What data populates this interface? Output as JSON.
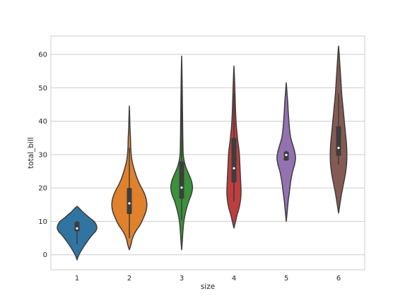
{
  "chart_data": {
    "type": "violin",
    "title": "",
    "xlabel": "size",
    "ylabel": "total_bill",
    "categories": [
      "1",
      "2",
      "3",
      "4",
      "5",
      "6"
    ],
    "ylim": [
      -4.5,
      65.5
    ],
    "yticks": [
      0,
      10,
      20,
      30,
      40,
      50,
      60
    ],
    "grid": true,
    "grid_axis": "y",
    "violins": [
      {
        "category": "1",
        "color": "#3274a1",
        "ymin": -1.5,
        "ymax": 14.5,
        "profile": [
          [
            -1.5,
            0.0
          ],
          [
            0,
            0.06
          ],
          [
            2,
            0.18
          ],
          [
            4,
            0.32
          ],
          [
            6,
            0.48
          ],
          [
            7,
            0.58
          ],
          [
            8,
            0.62
          ],
          [
            9,
            0.6
          ],
          [
            10,
            0.53
          ],
          [
            11,
            0.4
          ],
          [
            12,
            0.28
          ],
          [
            13,
            0.16
          ],
          [
            14,
            0.06
          ],
          [
            14.5,
            0.0
          ]
        ],
        "median": 7.9,
        "q1": 7.0,
        "q3": 9.9,
        "whisker_low": 3.1,
        "whisker_high": 10.1
      },
      {
        "category": "2",
        "color": "#e1812c",
        "ymin": 1.5,
        "ymax": 44.5,
        "profile": [
          [
            1.5,
            0.0
          ],
          [
            3,
            0.05
          ],
          [
            5,
            0.1
          ],
          [
            7,
            0.2
          ],
          [
            9,
            0.34
          ],
          [
            11,
            0.44
          ],
          [
            13,
            0.52
          ],
          [
            15,
            0.55
          ],
          [
            17,
            0.52
          ],
          [
            19,
            0.44
          ],
          [
            21,
            0.33
          ],
          [
            23,
            0.24
          ],
          [
            25,
            0.17
          ],
          [
            27,
            0.11
          ],
          [
            29,
            0.07
          ],
          [
            31,
            0.05
          ],
          [
            33,
            0.04
          ],
          [
            35,
            0.035
          ],
          [
            38,
            0.02
          ],
          [
            41,
            0.012
          ],
          [
            44.5,
            0.0
          ]
        ],
        "median": 15.4,
        "q1": 12.2,
        "q3": 20.0,
        "whisker_low": 5.0,
        "whisker_high": 32.0
      },
      {
        "category": "3",
        "color": "#3a923a",
        "ymin": 1.5,
        "ymax": 59.5,
        "profile": [
          [
            1.5,
            0.0
          ],
          [
            4,
            0.02
          ],
          [
            7,
            0.04
          ],
          [
            10,
            0.07
          ],
          [
            13,
            0.13
          ],
          [
            16,
            0.22
          ],
          [
            18,
            0.3
          ],
          [
            20,
            0.34
          ],
          [
            22,
            0.31
          ],
          [
            24,
            0.23
          ],
          [
            26,
            0.14
          ],
          [
            28,
            0.08
          ],
          [
            30,
            0.05
          ],
          [
            33,
            0.04
          ],
          [
            36,
            0.035
          ],
          [
            40,
            0.03
          ],
          [
            44,
            0.025
          ],
          [
            48,
            0.02
          ],
          [
            52,
            0.015
          ],
          [
            56,
            0.008
          ],
          [
            59.5,
            0.0
          ]
        ],
        "median": 20.1,
        "q1": 16.8,
        "q3": 27.9,
        "whisker_low": 10.3,
        "whisker_high": 50.8
      },
      {
        "category": "4",
        "color": "#c03d3e",
        "ymin": 8.0,
        "ymax": 56.5,
        "profile": [
          [
            8,
            0.0
          ],
          [
            10,
            0.05
          ],
          [
            12,
            0.1
          ],
          [
            14,
            0.16
          ],
          [
            16,
            0.2
          ],
          [
            18,
            0.22
          ],
          [
            20,
            0.22
          ],
          [
            22,
            0.21
          ],
          [
            24,
            0.2
          ],
          [
            26,
            0.19
          ],
          [
            28,
            0.18
          ],
          [
            30,
            0.17
          ],
          [
            32,
            0.15
          ],
          [
            34,
            0.12
          ],
          [
            36,
            0.1
          ],
          [
            38,
            0.08
          ],
          [
            40,
            0.065
          ],
          [
            43,
            0.05
          ],
          [
            46,
            0.04
          ],
          [
            49,
            0.03
          ],
          [
            52,
            0.02
          ],
          [
            54.5,
            0.01
          ],
          [
            56.5,
            0.0
          ]
        ],
        "median": 25.9,
        "q1": 21.6,
        "q3": 35.0,
        "whisker_low": 16.0,
        "whisker_high": 48.3
      },
      {
        "category": "5",
        "color": "#9372b2",
        "ymin": 10.0,
        "ymax": 51.5,
        "profile": [
          [
            10,
            0.0
          ],
          [
            13,
            0.03
          ],
          [
            16,
            0.06
          ],
          [
            19,
            0.1
          ],
          [
            22,
            0.14
          ],
          [
            25,
            0.2
          ],
          [
            27,
            0.26
          ],
          [
            29,
            0.29
          ],
          [
            31,
            0.26
          ],
          [
            33,
            0.2
          ],
          [
            35,
            0.14
          ],
          [
            37,
            0.11
          ],
          [
            39,
            0.09
          ],
          [
            41,
            0.075
          ],
          [
            43,
            0.06
          ],
          [
            45,
            0.05
          ],
          [
            47,
            0.035
          ],
          [
            49,
            0.02
          ],
          [
            51.5,
            0.0
          ]
        ],
        "median": 29.9,
        "q1": 28.2,
        "q3": 30.9,
        "whisker_low": 28.2,
        "whisker_high": 31.2
      },
      {
        "category": "6",
        "color": "#845b53",
        "ymin": 12.5,
        "ymax": 62.5,
        "profile": [
          [
            12.5,
            0.0
          ],
          [
            15,
            0.04
          ],
          [
            18,
            0.09
          ],
          [
            21,
            0.15
          ],
          [
            24,
            0.21
          ],
          [
            27,
            0.25
          ],
          [
            30,
            0.26
          ],
          [
            33,
            0.25
          ],
          [
            36,
            0.22
          ],
          [
            39,
            0.19
          ],
          [
            42,
            0.16
          ],
          [
            45,
            0.13
          ],
          [
            48,
            0.1
          ],
          [
            51,
            0.08
          ],
          [
            54,
            0.06
          ],
          [
            57,
            0.04
          ],
          [
            60,
            0.02
          ],
          [
            62.5,
            0.0
          ]
        ],
        "median": 32.0,
        "q1": 29.6,
        "q3": 38.5,
        "whisker_low": 27.0,
        "whisker_high": 48.2
      }
    ]
  },
  "colors": {
    "background": "#ffffff",
    "grid": "#cccccc",
    "axes_edge": "#cccccc",
    "outline": "#3d3d3d",
    "box": "#3d3d3d",
    "median_dot": "#ffffff",
    "text": "#262626"
  }
}
